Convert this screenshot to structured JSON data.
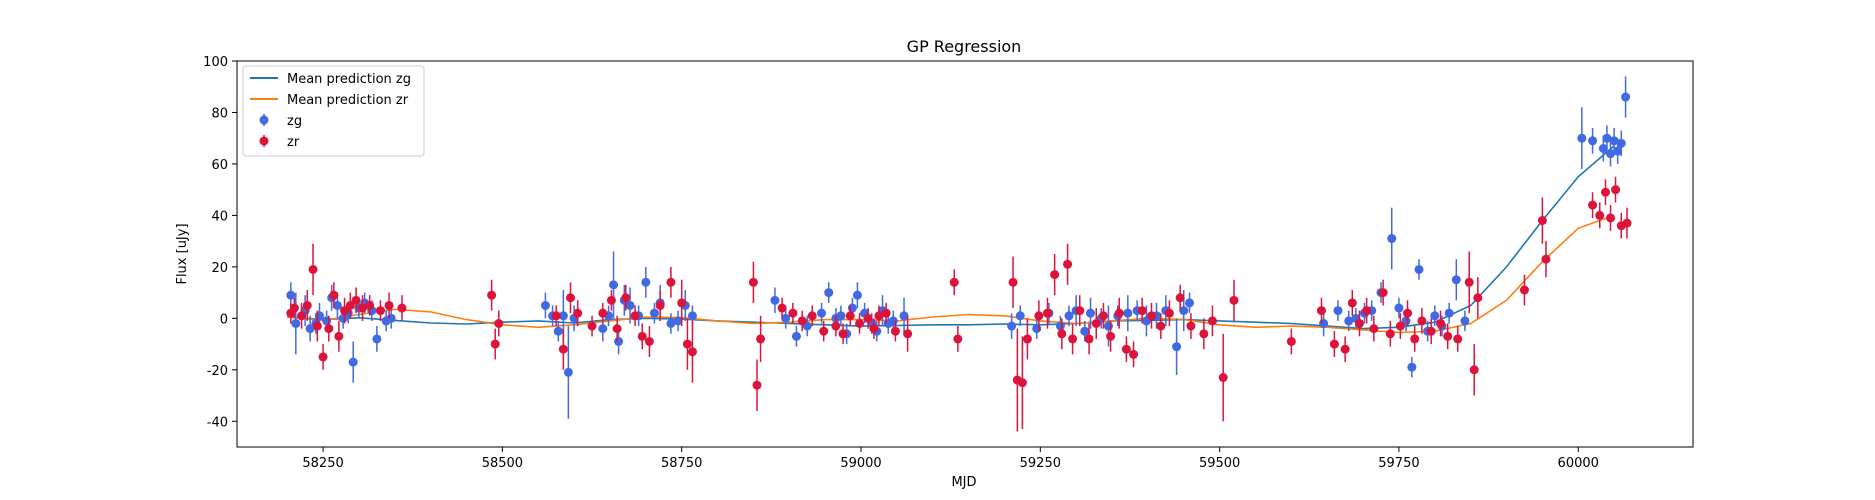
{
  "chart_data": {
    "type": "scatter",
    "title": "GP Regression",
    "xlabel": "MJD",
    "ylabel": "Flux [uJy]",
    "xlim": [
      58130,
      60160
    ],
    "ylim": [
      -50,
      100
    ],
    "xticks": [
      58250,
      58500,
      58750,
      59000,
      59250,
      59500,
      59750,
      60000
    ],
    "yticks": [
      -40,
      -20,
      0,
      20,
      40,
      60,
      80,
      100
    ],
    "grid": false,
    "legend_placement": "top-left",
    "legend": [
      "Mean prediction zg",
      "Mean prediction zr",
      "zg",
      "zr"
    ],
    "lines": [
      {
        "name": "Mean prediction zg",
        "color": "#1f77b4",
        "x": [
          58200,
          58250,
          58300,
          58350,
          58400,
          58450,
          58500,
          58550,
          58600,
          58650,
          58700,
          58750,
          58800,
          58850,
          58900,
          58950,
          59000,
          59050,
          59100,
          59150,
          59200,
          59250,
          59300,
          59350,
          59400,
          59450,
          59500,
          59550,
          59600,
          59650,
          59700,
          59750,
          59800,
          59850,
          59900,
          59950,
          60000,
          60050
        ],
        "y": [
          0.5,
          -0.5,
          0.2,
          -0.8,
          -1.8,
          -2.2,
          -1.5,
          -1.0,
          -1.8,
          -0.5,
          0.0,
          -0.3,
          -1.0,
          -1.5,
          -2.0,
          -2.5,
          -3.0,
          -2.8,
          -2.5,
          -2.5,
          -2.2,
          -2.5,
          -2.0,
          -1.0,
          -0.8,
          -0.5,
          -1.0,
          -1.5,
          -2.0,
          -3.0,
          -4.0,
          -3.5,
          -1.5,
          5,
          20,
          38,
          55,
          67
        ]
      },
      {
        "name": "Mean prediction zr",
        "color": "#ff7f0e",
        "x": [
          58200,
          58250,
          58300,
          58350,
          58400,
          58450,
          58500,
          58550,
          58600,
          58650,
          58700,
          58750,
          58800,
          58850,
          58900,
          58950,
          59000,
          59050,
          59100,
          59150,
          59200,
          59250,
          59300,
          59350,
          59400,
          59450,
          59500,
          59550,
          59600,
          59650,
          59700,
          59750,
          59800,
          59850,
          59900,
          59950,
          60000,
          60050
        ],
        "y": [
          0.5,
          -0.8,
          1.5,
          3.5,
          2.5,
          -0.5,
          -2.5,
          -3.5,
          -2.5,
          -1.0,
          0.5,
          0.3,
          -1.0,
          -2.0,
          -1.5,
          -0.5,
          -0.5,
          -1.0,
          0.5,
          1.5,
          1.0,
          -1.0,
          -2.0,
          -1.0,
          0.0,
          -0.5,
          -2.5,
          -3.5,
          -3.0,
          -3.5,
          -4.5,
          -5.5,
          -5.0,
          -2.0,
          7,
          22,
          35,
          40
        ]
      }
    ],
    "series": [
      {
        "name": "zg",
        "color": "#4169e1",
        "x": [
          58205,
          58212,
          58225,
          58232,
          58240,
          58245,
          58255,
          58262,
          58270,
          58278,
          58285,
          58292,
          58300,
          58308,
          58318,
          58325,
          58338,
          58345,
          58560,
          58570,
          58578,
          58585,
          58592,
          58600,
          58640,
          58648,
          58655,
          58662,
          58670,
          58678,
          58690,
          58700,
          58712,
          58720,
          58735,
          58745,
          58755,
          58765,
          58880,
          58895,
          58910,
          58925,
          58945,
          58955,
          58965,
          58972,
          58980,
          58988,
          58995,
          59005,
          59015,
          59022,
          59030,
          59038,
          59045,
          59060,
          59210,
          59222,
          59245,
          59262,
          59278,
          59290,
          59300,
          59312,
          59320,
          59335,
          59345,
          59358,
          59372,
          59385,
          59398,
          59412,
          59425,
          59440,
          59450,
          59458,
          59645,
          59665,
          59680,
          59690,
          59702,
          59712,
          59725,
          59740,
          59750,
          59760,
          59768,
          59778,
          59790,
          59800,
          59810,
          59820,
          59830,
          59842,
          60005,
          60020,
          60035,
          60040,
          60045,
          60050,
          60055,
          60060,
          60066
        ],
        "y": [
          9,
          -2,
          3,
          -4,
          -2,
          1,
          -1,
          8,
          5,
          0,
          2,
          -17,
          4,
          6,
          3,
          -8,
          -1,
          0,
          5,
          1,
          -5,
          1,
          -21,
          0,
          -4,
          1,
          13,
          -9,
          7,
          5,
          1,
          14,
          2,
          6,
          -2,
          -1,
          5,
          1,
          7,
          0,
          -7,
          -3,
          2,
          10,
          0,
          1,
          -6,
          4,
          9,
          2,
          -2,
          -5,
          3,
          -2,
          -1,
          1,
          -3,
          1,
          -4,
          2,
          -3,
          1,
          3,
          -5,
          2,
          0,
          -3,
          1,
          2,
          3,
          -1,
          1,
          3,
          -11,
          3,
          6,
          -2,
          3,
          -1,
          0,
          2,
          3,
          10,
          31,
          4,
          -1,
          -19,
          19,
          -5,
          1,
          -3,
          2,
          15,
          -1,
          70,
          69,
          66,
          70,
          64,
          69,
          65,
          68,
          86
        ],
        "err": [
          5,
          12,
          6,
          5,
          4,
          5,
          4,
          5,
          5,
          4,
          4,
          8,
          4,
          4,
          4,
          5,
          4,
          4,
          5,
          4,
          4,
          10,
          18,
          5,
          5,
          4,
          13,
          5,
          6,
          7,
          4,
          6,
          4,
          7,
          4,
          4,
          6,
          4,
          5,
          4,
          4,
          4,
          4,
          4,
          4,
          4,
          4,
          4,
          5,
          4,
          4,
          4,
          6,
          4,
          4,
          7,
          5,
          4,
          4,
          4,
          4,
          4,
          6,
          4,
          6,
          4,
          8,
          4,
          7,
          4,
          6,
          5,
          6,
          11,
          8,
          4,
          5,
          4,
          4,
          4,
          4,
          4,
          4,
          12,
          4,
          4,
          4,
          4,
          4,
          4,
          4,
          4,
          8,
          4,
          12,
          5,
          5,
          5,
          5,
          5,
          5,
          5,
          8
        ]
      },
      {
        "name": "zr",
        "color": "#dc143c",
        "x": [
          58205,
          58210,
          58220,
          58228,
          58236,
          58242,
          58250,
          58258,
          58265,
          58272,
          58280,
          58288,
          58296,
          58305,
          58315,
          58330,
          58342,
          58360,
          58485,
          58490,
          58495,
          58575,
          58585,
          58595,
          58605,
          58625,
          58640,
          58652,
          58660,
          58672,
          58685,
          58695,
          58705,
          58720,
          58735,
          58750,
          58758,
          58765,
          58850,
          58855,
          58860,
          58890,
          58905,
          58918,
          58932,
          58948,
          58965,
          58975,
          58985,
          58998,
          59010,
          59018,
          59025,
          59035,
          59048,
          59065,
          59130,
          59135,
          59212,
          59218,
          59225,
          59232,
          59248,
          59260,
          59270,
          59280,
          59288,
          59295,
          59305,
          59318,
          59328,
          59338,
          59348,
          59360,
          59370,
          59380,
          59392,
          59405,
          59418,
          59430,
          59445,
          59460,
          59478,
          59490,
          59505,
          59520,
          59600,
          59642,
          59660,
          59675,
          59685,
          59695,
          59705,
          59715,
          59728,
          59738,
          59752,
          59762,
          59772,
          59782,
          59795,
          59808,
          59818,
          59832,
          59848,
          59855,
          59860,
          59925,
          59950,
          59955,
          60020,
          60030,
          60038,
          60045,
          60052,
          60060,
          60068
        ],
        "y": [
          2,
          4,
          1,
          5,
          19,
          -3,
          -15,
          -4,
          9,
          -7,
          3,
          5,
          7,
          4,
          5,
          3,
          5,
          4,
          9,
          -10,
          -2,
          1,
          -12,
          8,
          2,
          -3,
          2,
          7,
          -4,
          8,
          1,
          -7,
          -9,
          5,
          14,
          6,
          -10,
          -13,
          14,
          -26,
          -8,
          4,
          2,
          -1,
          1,
          -5,
          -3,
          -6,
          1,
          -2,
          0,
          -4,
          1,
          2,
          -5,
          -6,
          14,
          -8,
          14,
          -24,
          -25,
          -8,
          1,
          2,
          17,
          -6,
          21,
          -8,
          3,
          -8,
          -2,
          1,
          -7,
          2,
          -12,
          -14,
          3,
          1,
          -3,
          2,
          8,
          -3,
          -6,
          -1,
          -23,
          7,
          -9,
          3,
          -10,
          -12,
          6,
          -2,
          3,
          -4,
          10,
          -6,
          -3,
          2,
          -8,
          -1,
          -5,
          -2,
          -7,
          -8,
          14,
          -20,
          8,
          11,
          38,
          23,
          44,
          40,
          49,
          39,
          50,
          36,
          37
        ],
        "err": [
          4,
          4,
          5,
          6,
          10,
          6,
          5,
          5,
          5,
          6,
          5,
          5,
          5,
          5,
          4,
          4,
          5,
          5,
          6,
          6,
          5,
          4,
          8,
          6,
          5,
          4,
          4,
          4,
          5,
          5,
          4,
          5,
          6,
          6,
          6,
          9,
          10,
          12,
          8,
          10,
          9,
          4,
          4,
          4,
          4,
          4,
          4,
          4,
          4,
          4,
          4,
          4,
          4,
          4,
          4,
          7,
          5,
          5,
          10,
          20,
          18,
          8,
          6,
          6,
          8,
          6,
          8,
          6,
          6,
          6,
          6,
          5,
          6,
          6,
          5,
          5,
          5,
          5,
          5,
          5,
          5,
          5,
          6,
          6,
          17,
          8,
          5,
          5,
          5,
          5,
          5,
          5,
          5,
          5,
          5,
          5,
          5,
          5,
          5,
          5,
          5,
          5,
          5,
          5,
          12,
          10,
          8,
          6,
          9,
          7,
          5,
          5,
          5,
          5,
          5,
          5,
          6
        ]
      }
    ]
  }
}
